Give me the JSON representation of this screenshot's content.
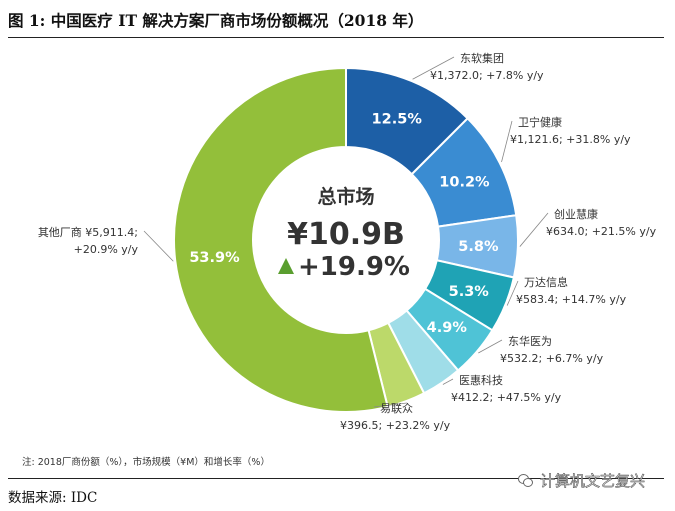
{
  "figure": {
    "title": "图 1:  中国医疗 IT 解决方案厂商市场份额概况（2018 年）",
    "note": "注: 2018厂商份额（%），市场规模（¥M）和增长率（%）",
    "source": "数据来源:  IDC",
    "watermark": "计算机文艺复兴",
    "watermark_icon": "wechat-icon"
  },
  "chart_data": {
    "type": "pie",
    "style": "donut",
    "center_label": "总市场",
    "center_total": "¥10.9B",
    "center_growth": "+19.9%",
    "center_growth_color": "#5a9e2f",
    "slices": [
      {
        "name": "东软集团",
        "share": 12.5,
        "share_label": "12.5%",
        "detail": "¥1,372.0;  +7.8% y/y",
        "color": "#1d5fa6"
      },
      {
        "name": "卫宁健康",
        "share": 10.2,
        "share_label": "10.2%",
        "detail": "¥1,121.6;  +31.8% y/y",
        "color": "#3a8cd2"
      },
      {
        "name": "创业慧康",
        "share": 5.8,
        "share_label": "5.8%",
        "detail": "¥634.0;  +21.5% y/y",
        "color": "#79b6e8"
      },
      {
        "name": "万达信息",
        "share": 5.3,
        "share_label": "5.3%",
        "detail": "¥583.4;  +14.7% y/y",
        "color": "#1fa3b5"
      },
      {
        "name": "东华医为",
        "share": 4.9,
        "share_label": "4.9%",
        "detail": "¥532.2;  +6.7% y/y",
        "color": "#4fc3d6"
      },
      {
        "name": "医惠科技",
        "share": 3.8,
        "share_label": "",
        "detail": "¥412.2;  +47.5% y/y",
        "color": "#9fdde8"
      },
      {
        "name": "易联众",
        "share": 3.6,
        "share_label": "",
        "detail": "¥396.5;  +23.2% y/y",
        "color": "#bcd96a"
      },
      {
        "name": "其他厂商",
        "share": 53.9,
        "share_label": "53.9%",
        "detail": "¥5,911.4;  +20.9% y/y",
        "color": "#93bf3a"
      }
    ]
  }
}
